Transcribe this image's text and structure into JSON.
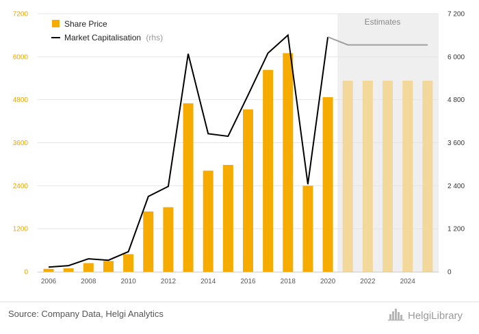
{
  "chart_data": {
    "type": "bar",
    "x": [
      2006,
      2007,
      2008,
      2009,
      2010,
      2011,
      2012,
      2013,
      2014,
      2015,
      2016,
      2017,
      2018,
      2019,
      2020,
      2021,
      2022,
      2023,
      2024,
      2025
    ],
    "series": [
      {
        "name": "Share Price",
        "type": "bar",
        "axis": "left",
        "values": [
          80,
          95,
          240,
          300,
          490,
          1680,
          1800,
          4700,
          2820,
          2980,
          4530,
          5630,
          6100,
          2400,
          4870,
          5330,
          5330,
          5330,
          5330,
          5330
        ]
      },
      {
        "name": "Market Capitalisation",
        "name_suffix": "(rhs)",
        "type": "line",
        "axis": "right",
        "values": [
          130,
          170,
          360,
          320,
          560,
          2100,
          2380,
          6080,
          3850,
          3780,
          4930,
          6100,
          6600,
          2440,
          6550,
          6330,
          6330,
          6330,
          6330,
          6330
        ]
      }
    ],
    "estimates_from": 2021,
    "estimates_label": "Estimates",
    "y_left": {
      "ylim": [
        0,
        7200
      ],
      "ticks": [
        0,
        1200,
        2400,
        3600,
        4800,
        6000,
        7200
      ],
      "tick_labels": [
        "0",
        "1200",
        "2400",
        "3600",
        "4800",
        "6000",
        "7200"
      ]
    },
    "y_right": {
      "ylim": [
        0,
        7200
      ],
      "ticks": [
        0,
        1200,
        2400,
        3600,
        4800,
        6000,
        7200
      ],
      "tick_labels": [
        "0",
        "1 200",
        "2 400",
        "3 600",
        "4 800",
        "6 000",
        "7 200"
      ]
    },
    "x_tick_labels": [
      "2006",
      "2008",
      "2010",
      "2012",
      "2014",
      "2016",
      "2018",
      "2020",
      "2022",
      "2024"
    ],
    "legend_position": "top-left",
    "grid": true,
    "title": "",
    "xlabel": "",
    "ylabel": ""
  },
  "colors": {
    "bar": "#f5ab00",
    "bar_estimate": "#f2d89b",
    "line": "#000000",
    "line_estimate": "#9e9e9e",
    "estimate_shade": "#efefef",
    "grid": "#e4e4e4"
  },
  "footer": {
    "source": "Source: Company Data, Helgi Analytics",
    "brand": "HelgiLibrary",
    "brand_icon": "city-skyline-icon"
  }
}
